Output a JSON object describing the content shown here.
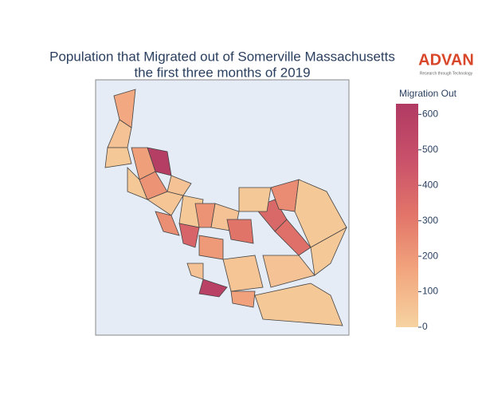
{
  "chart_data": {
    "type": "choropleth",
    "title": "Population that Migrated out of Somerville Massachusetts",
    "subtitle": "the first three months of 2019",
    "colorbar_title": "Migration Out",
    "values": [
      150,
      60,
      40,
      600,
      180,
      40,
      50,
      220,
      60,
      230,
      40,
      220,
      390,
      200,
      60,
      320,
      370,
      240,
      40,
      340,
      40,
      580,
      170,
      40,
      50,
      60,
      60,
      40
    ],
    "clim": [
      0,
      630
    ],
    "colorbar_ticks": [
      0,
      100,
      200,
      300,
      400,
      500,
      600
    ],
    "colorscale": [
      "#f6d3a1",
      "#f2a67e",
      "#e27569",
      "#c9516a",
      "#b03a63"
    ],
    "map_background": "#e5ecf6"
  },
  "logo": {
    "name": "ADVAN",
    "tagline": "Research through Technology"
  }
}
